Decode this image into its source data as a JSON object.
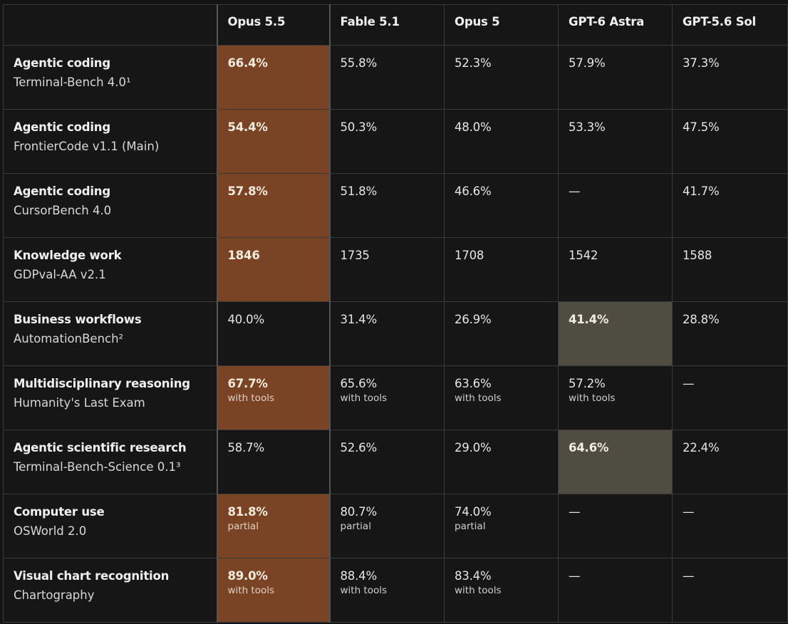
{
  "colors": {
    "background": "#141414",
    "grid": "#3a3a3a",
    "highlight_best": "#7a4424",
    "highlight_alt": "#4f4d42"
  },
  "chart_data": {
    "type": "table",
    "columns": [
      "",
      "Opus 5.5",
      "Fable 5.1",
      "Opus 5",
      "GPT-6 Astra",
      "GPT-5.6 Sol"
    ],
    "rows": [
      {
        "category": "Agentic coding",
        "benchmark": "Terminal-Bench 4.0¹",
        "values": [
          "66.4%",
          "55.8%",
          "52.3%",
          "57.9%",
          "37.3%"
        ],
        "notes": [
          "",
          "",
          "",
          "",
          ""
        ],
        "highlight": [
          "best",
          "",
          "",
          "",
          ""
        ]
      },
      {
        "category": "Agentic coding",
        "benchmark": "FrontierCode v1.1 (Main)",
        "values": [
          "54.4%",
          "50.3%",
          "48.0%",
          "53.3%",
          "47.5%"
        ],
        "notes": [
          "",
          "",
          "",
          "",
          ""
        ],
        "highlight": [
          "best",
          "",
          "",
          "",
          ""
        ]
      },
      {
        "category": "Agentic coding",
        "benchmark": "CursorBench 4.0",
        "values": [
          "57.8%",
          "51.8%",
          "46.6%",
          "—",
          "41.7%"
        ],
        "notes": [
          "",
          "",
          "",
          "",
          ""
        ],
        "highlight": [
          "best",
          "",
          "",
          "",
          ""
        ]
      },
      {
        "category": "Knowledge work",
        "benchmark": "GDPval-AA v2.1",
        "values": [
          "1846",
          "1735",
          "1708",
          "1542",
          "1588"
        ],
        "notes": [
          "",
          "",
          "",
          "",
          ""
        ],
        "highlight": [
          "best",
          "",
          "",
          "",
          ""
        ]
      },
      {
        "category": "Business workflows",
        "benchmark": "AutomationBench²",
        "values": [
          "40.0%",
          "31.4%",
          "26.9%",
          "41.4%",
          "28.8%"
        ],
        "notes": [
          "",
          "",
          "",
          "",
          ""
        ],
        "highlight": [
          "",
          "",
          "",
          "alt",
          ""
        ]
      },
      {
        "category": "Multidisciplinary reasoning",
        "benchmark": "Humanity's Last Exam",
        "values": [
          "67.7%",
          "65.6%",
          "63.6%",
          "57.2%",
          "—"
        ],
        "notes": [
          "with tools",
          "with tools",
          "with tools",
          "with tools",
          ""
        ],
        "highlight": [
          "best",
          "",
          "",
          "",
          ""
        ]
      },
      {
        "category": "Agentic scientific research",
        "benchmark": "Terminal-Bench-Science 0.1³",
        "values": [
          "58.7%",
          "52.6%",
          "29.0%",
          "64.6%",
          "22.4%"
        ],
        "notes": [
          "",
          "",
          "",
          "",
          ""
        ],
        "highlight": [
          "",
          "",
          "",
          "alt",
          ""
        ]
      },
      {
        "category": "Computer use",
        "benchmark": "OSWorld 2.0",
        "values": [
          "81.8%",
          "80.7%",
          "74.0%",
          "—",
          "—"
        ],
        "notes": [
          "partial",
          "partial",
          "partial",
          "",
          ""
        ],
        "highlight": [
          "best",
          "",
          "",
          "",
          ""
        ]
      },
      {
        "category": "Visual chart recognition",
        "benchmark": "Chartography",
        "values": [
          "89.0%",
          "88.4%",
          "83.4%",
          "—",
          "—"
        ],
        "notes": [
          "with tools",
          "with tools",
          "with tools",
          "",
          ""
        ],
        "highlight": [
          "best",
          "",
          "",
          "",
          ""
        ]
      }
    ]
  }
}
